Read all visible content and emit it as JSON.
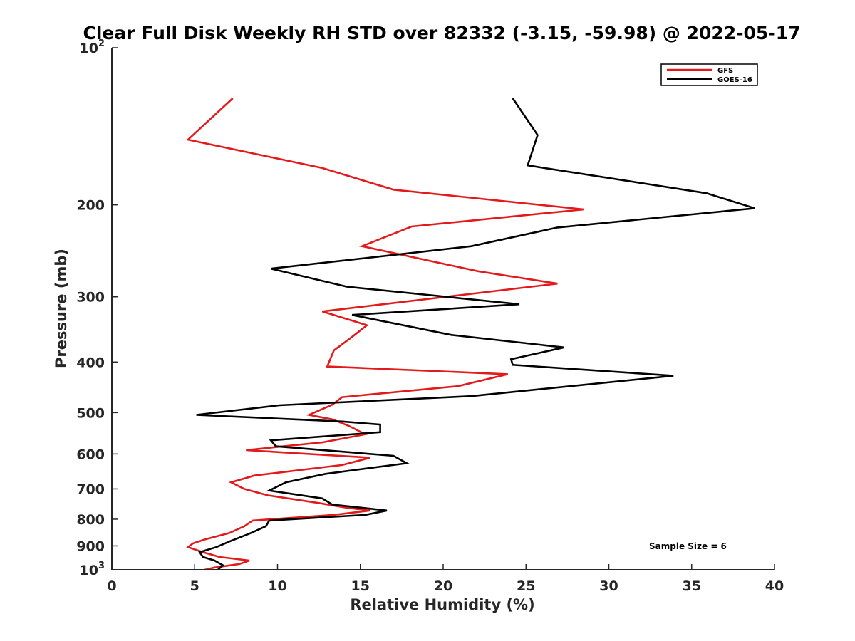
{
  "chart_data": {
    "type": "line",
    "title": "Clear Full Disk Weekly RH STD over 82332 (-3.15, -59.98) @ 2022-05-17",
    "xlabel": "Relative Humidity (%)",
    "ylabel": "Pressure (mb)",
    "xlim": [
      0,
      40
    ],
    "ylim": [
      100,
      1000
    ],
    "y_scale": "log",
    "y_reversed": true,
    "x_ticks": [
      "0",
      "5",
      "10",
      "15",
      "20",
      "25",
      "30",
      "35",
      "40"
    ],
    "y_ticks": [
      "10^2",
      "200",
      "300",
      "400",
      "500",
      "600",
      "700",
      "800",
      "900",
      "10^3"
    ],
    "grid": false,
    "legend_position": "top-right",
    "annotation": "Sample Size = 6",
    "series": [
      {
        "name": "GFS",
        "color": "#e31a1c",
        "points": [
          [
            7.3,
            125
          ],
          [
            4.6,
            150
          ],
          [
            12.7,
            170
          ],
          [
            17.0,
            187
          ],
          [
            28.5,
            204
          ],
          [
            18.1,
            220
          ],
          [
            15.1,
            240
          ],
          [
            22.1,
            268
          ],
          [
            26.9,
            283
          ],
          [
            12.7,
            320
          ],
          [
            15.4,
            340
          ],
          [
            14.4,
            360
          ],
          [
            13.4,
            380
          ],
          [
            13.0,
            408
          ],
          [
            23.9,
            422
          ],
          [
            20.9,
            445
          ],
          [
            13.9,
            467
          ],
          [
            13.3,
            483
          ],
          [
            11.9,
            505
          ],
          [
            13.3,
            515
          ],
          [
            14.3,
            530
          ],
          [
            15.3,
            550
          ],
          [
            12.7,
            570
          ],
          [
            8.1,
            590
          ],
          [
            15.6,
            610
          ],
          [
            13.9,
            630
          ],
          [
            8.6,
            660
          ],
          [
            7.2,
            680
          ],
          [
            8.0,
            700
          ],
          [
            9.4,
            720
          ],
          [
            12.5,
            745
          ],
          [
            14.1,
            760
          ],
          [
            15.6,
            770
          ],
          [
            13.4,
            785
          ],
          [
            8.5,
            805
          ],
          [
            8.0,
            825
          ],
          [
            7.1,
            850
          ],
          [
            5.6,
            875
          ],
          [
            4.9,
            890
          ],
          [
            4.6,
            905
          ],
          [
            5.5,
            925
          ],
          [
            6.5,
            945
          ],
          [
            8.3,
            960
          ],
          [
            7.7,
            975
          ],
          [
            6.2,
            990
          ],
          [
            5.6,
            1000
          ]
        ]
      },
      {
        "name": "GOES-16",
        "color": "#000000",
        "points": [
          [
            24.2,
            125
          ],
          [
            25.7,
            147
          ],
          [
            25.1,
            168
          ],
          [
            35.9,
            190
          ],
          [
            38.8,
            203
          ],
          [
            26.9,
            221
          ],
          [
            21.7,
            240
          ],
          [
            9.6,
            265
          ],
          [
            14.2,
            287
          ],
          [
            24.6,
            310
          ],
          [
            14.5,
            325
          ],
          [
            20.5,
            355
          ],
          [
            27.3,
            375
          ],
          [
            24.1,
            395
          ],
          [
            24.2,
            405
          ],
          [
            33.9,
            425
          ],
          [
            21.7,
            465
          ],
          [
            10.1,
            484
          ],
          [
            5.1,
            505
          ],
          [
            13.9,
            520
          ],
          [
            16.2,
            527
          ],
          [
            16.2,
            545
          ],
          [
            9.6,
            565
          ],
          [
            9.9,
            580
          ],
          [
            17.0,
            605
          ],
          [
            17.8,
            625
          ],
          [
            12.9,
            655
          ],
          [
            10.5,
            680
          ],
          [
            9.5,
            705
          ],
          [
            12.7,
            730
          ],
          [
            13.3,
            750
          ],
          [
            16.6,
            770
          ],
          [
            15.3,
            785
          ],
          [
            9.5,
            805
          ],
          [
            9.3,
            825
          ],
          [
            8.4,
            850
          ],
          [
            7.2,
            880
          ],
          [
            6.3,
            905
          ],
          [
            5.3,
            925
          ],
          [
            5.5,
            945
          ],
          [
            6.2,
            960
          ],
          [
            6.7,
            980
          ],
          [
            6.4,
            1000
          ]
        ]
      }
    ]
  }
}
